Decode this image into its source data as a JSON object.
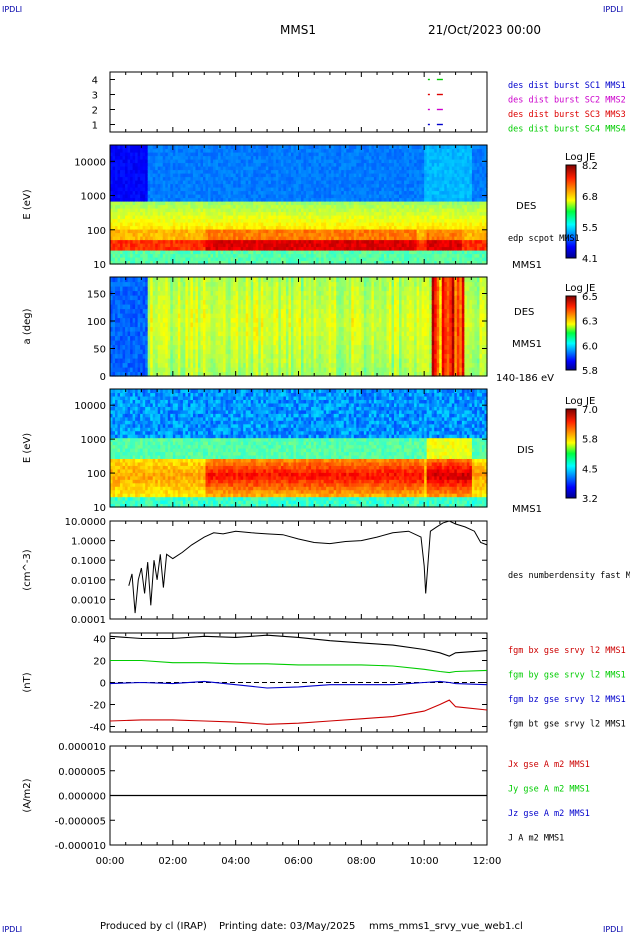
{
  "header": {
    "corner_label": "IPDLI",
    "spacecraft": "MMS1",
    "datetime": "21/Oct/2023 00:00"
  },
  "footer": {
    "produced_by": "Produced by cl (IRAP)",
    "printing_date": "Printing date: 03/May/2025",
    "script_name": "mms_mms1_srvy_vue_web1.cl"
  },
  "colors": {
    "mms1": "#0000cc",
    "mms2": "#cc00cc",
    "mms3": "#dd0000",
    "mms4": "#00cc00",
    "bx": "#cc0000",
    "by": "#00cc00",
    "bz": "#0000cc",
    "bt": "#000000"
  },
  "chart_data": [
    {
      "type": "scatter",
      "id": "burst",
      "yticks": [
        "1",
        "2",
        "3",
        "4"
      ],
      "ylim": [
        0.5,
        4.5
      ],
      "legend": [
        "des dist burst SC1 MMS1",
        "des dist burst SC2 MMS2",
        "des dist burst SC3 MMS3",
        "des dist burst SC4 MMS4"
      ],
      "series": [
        {
          "sc": 1,
          "x": [
            10.15,
            10.5
          ],
          "y": [
            1,
            1
          ]
        },
        {
          "sc": 2,
          "x": [
            10.15,
            10.5
          ],
          "y": [
            2,
            2
          ]
        },
        {
          "sc": 3,
          "x": [
            10.15,
            10.5
          ],
          "y": [
            3,
            3
          ]
        },
        {
          "sc": 4,
          "x": [
            10.15,
            10.5
          ],
          "y": [
            4,
            4
          ]
        }
      ]
    },
    {
      "type": "heatmap",
      "id": "des_energy",
      "ylabel": "E (eV)",
      "yscale": "log",
      "ylim": [
        10,
        30000
      ],
      "yticks": [
        "10",
        "100",
        "1000",
        "10000"
      ],
      "right_labels": [
        "DES",
        "edp scpot MMS1",
        "MMS1"
      ],
      "colorbar": {
        "title": "Log JE",
        "ticks": [
          "8.2",
          "6.8",
          "5.5",
          "4.1"
        ]
      }
    },
    {
      "type": "heatmap",
      "id": "des_pitch",
      "ylabel": "a (deg)",
      "ylim": [
        0,
        180
      ],
      "yticks": [
        "0",
        "50",
        "100",
        "150"
      ],
      "right_labels": [
        "DES",
        "MMS1",
        "140-186 eV"
      ],
      "colorbar": {
        "title": "Log JE",
        "ticks": [
          "6.5",
          "6.3",
          "6.0",
          "5.8"
        ]
      }
    },
    {
      "type": "heatmap",
      "id": "dis_energy",
      "ylabel": "E (eV)",
      "yscale": "log",
      "ylim": [
        10,
        30000
      ],
      "yticks": [
        "10",
        "100",
        "1000",
        "10000"
      ],
      "right_labels": [
        "DIS",
        "MMS1"
      ],
      "colorbar": {
        "title": "Log JE",
        "ticks": [
          "7.0",
          "5.8",
          "4.5",
          "3.2"
        ]
      }
    },
    {
      "type": "line",
      "id": "density",
      "ylabel": "(cm^-3)",
      "yscale": "log",
      "ylim": [
        0.0001,
        10
      ],
      "yticks": [
        "0.0001",
        "0.0010",
        "0.0100",
        "0.1000",
        "1.0000",
        "10.0000"
      ],
      "legend": [
        "des numberdensity fast M"
      ],
      "x": [
        0.6,
        0.7,
        0.8,
        0.9,
        1.0,
        1.1,
        1.2,
        1.3,
        1.4,
        1.5,
        1.6,
        1.7,
        1.8,
        2.0,
        2.3,
        2.6,
        3.0,
        3.3,
        3.6,
        4.0,
        4.5,
        5.0,
        5.5,
        6.0,
        6.5,
        7.0,
        7.5,
        8.0,
        8.5,
        9.0,
        9.5,
        9.9,
        10.0,
        10.05,
        10.2,
        10.4,
        10.6,
        10.8,
        11.0,
        11.3,
        11.6,
        11.8,
        12.0
      ],
      "y": [
        0.005,
        0.02,
        0.0002,
        0.01,
        0.04,
        0.002,
        0.08,
        0.0005,
        0.1,
        0.01,
        0.2,
        0.004,
        0.2,
        0.12,
        0.25,
        0.6,
        1.5,
        2.5,
        2.2,
        3.0,
        2.5,
        2.2,
        2.0,
        1.2,
        0.8,
        0.7,
        0.9,
        1.0,
        1.5,
        2.5,
        3.0,
        1.5,
        0.05,
        0.002,
        3.0,
        5.0,
        8.0,
        10.0,
        7.0,
        5.0,
        3.0,
        0.8,
        0.6
      ]
    },
    {
      "type": "line",
      "id": "fgm",
      "ylabel": "(nT)",
      "ylim": [
        -45,
        45
      ],
      "yticks": [
        "-40",
        "-20",
        "0",
        "20",
        "40"
      ],
      "legend": [
        "fgm bx gse srvy l2 MMS1",
        "fgm by gse srvy l2 MMS1",
        "fgm bz gse srvy l2 MMS1",
        "fgm bt gse srvy l2 MMS1"
      ],
      "series": [
        {
          "key": "bx",
          "x": [
            0,
            1,
            2,
            3,
            4,
            5,
            6,
            7,
            8,
            9,
            10,
            10.5,
            10.8,
            11,
            12
          ],
          "y": [
            -35,
            -34,
            -34,
            -35,
            -36,
            -38,
            -37,
            -35,
            -33,
            -31,
            -26,
            -20,
            -16,
            -22,
            -25
          ]
        },
        {
          "key": "by",
          "x": [
            0,
            1,
            2,
            3,
            4,
            5,
            6,
            7,
            8,
            9,
            10,
            10.5,
            10.8,
            11,
            12
          ],
          "y": [
            20,
            20,
            18,
            18,
            17,
            17,
            16,
            16,
            16,
            15,
            12,
            10,
            9,
            10,
            11
          ]
        },
        {
          "key": "bz",
          "x": [
            0,
            1,
            2,
            3,
            4,
            5,
            6,
            7,
            8,
            9,
            10,
            10.5,
            10.8,
            11,
            12
          ],
          "y": [
            -1,
            0,
            -1,
            1,
            -2,
            -5,
            -4,
            -2,
            -2,
            -2,
            0,
            1,
            0,
            -1,
            -2
          ]
        },
        {
          "key": "bt",
          "x": [
            0,
            1,
            2,
            3,
            4,
            5,
            6,
            7,
            8,
            9,
            10,
            10.5,
            10.8,
            11,
            12
          ],
          "y": [
            42,
            40,
            40,
            42,
            41,
            43,
            41,
            38,
            36,
            34,
            30,
            27,
            24,
            27,
            29
          ]
        }
      ]
    },
    {
      "type": "line",
      "id": "current",
      "ylabel": "(A/m2)",
      "ylim": [
        -0.0001,
        0.0001
      ],
      "yticks": [
        "-0.000010",
        "-0.000005",
        "0.000000",
        "0.000005",
        "0.000010"
      ],
      "legend": [
        "Jx gse A m2 MMS1",
        "Jy gse A m2 MMS1",
        "Jz gse A m2 MMS1",
        "J A m2 MMS1"
      ],
      "x": [
        0,
        12
      ],
      "y": [
        0,
        0
      ]
    }
  ],
  "xaxis": {
    "xlim": [
      0,
      12
    ],
    "ticks": [
      "00:00",
      "02:00",
      "04:00",
      "06:00",
      "08:00",
      "10:00",
      "12:00"
    ]
  }
}
